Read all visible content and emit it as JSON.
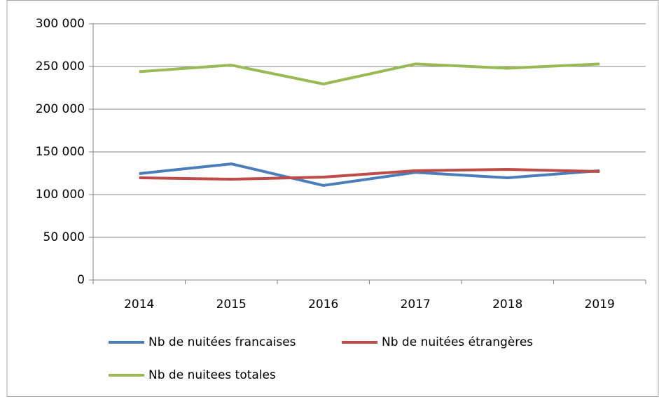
{
  "chart_data": {
    "type": "line",
    "categories": [
      "2014",
      "2015",
      "2016",
      "2017",
      "2018",
      "2019"
    ],
    "series": [
      {
        "name": "Nb de nuitées francaises",
        "color": "#4a7ebb",
        "values": [
          124600,
          136000,
          110700,
          126000,
          119700,
          128000
        ]
      },
      {
        "name": "Nb de nuitées étrangères",
        "color": "#be4b48",
        "values": [
          119700,
          118000,
          120500,
          128000,
          129500,
          127000
        ]
      },
      {
        "name": "Nb de nuitees totales",
        "color": "#98b954",
        "values": [
          244000,
          251600,
          229500,
          253000,
          248000,
          253000
        ]
      }
    ],
    "ylim": [
      0,
      300000
    ],
    "yticks": [
      0,
      {
        "value": 50000,
        "label": "50 000"
      },
      {
        "value": 100000,
        "label": "100 000"
      },
      {
        "value": 150000,
        "label": "150 000"
      },
      {
        "value": 200000,
        "label": "200 000"
      },
      {
        "value": 250000,
        "label": "250 000"
      },
      {
        "value": 300000,
        "label": "300 000"
      }
    ],
    "grid": true
  }
}
